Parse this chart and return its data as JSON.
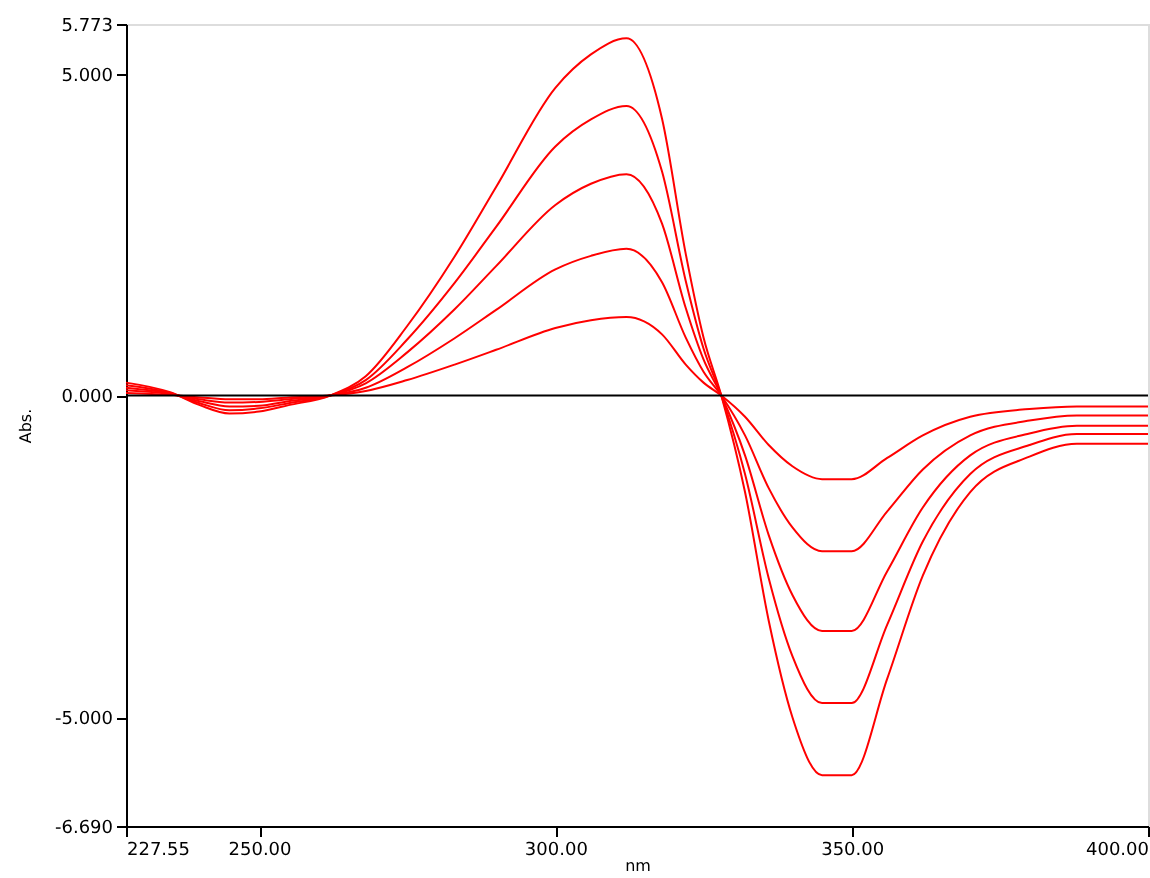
{
  "chart_data": {
    "type": "line",
    "xlabel": "nm",
    "ylabel": "Abs.",
    "x": [
      227.55,
      235,
      240,
      245,
      250,
      255,
      262,
      268,
      275,
      283,
      290,
      300,
      306,
      312,
      318,
      322,
      325,
      328,
      332,
      336,
      340,
      345,
      350,
      356,
      362,
      370,
      380,
      388,
      400
    ],
    "series": [
      {
        "color": "#ff0000",
        "values": [
          0.2,
          0.05,
          -0.15,
          -0.28,
          -0.25,
          -0.15,
          0,
          0.3,
          1.08,
          2.16,
          3.24,
          4.78,
          5.3,
          5.55,
          4.3,
          2.2,
          0.9,
          0,
          -1.5,
          -3.5,
          -5.0,
          -5.9,
          -5.9,
          -4.4,
          -2.8,
          -1.5,
          -0.95,
          -0.75,
          -0.75
        ]
      },
      {
        "color": "#ff0000",
        "values": [
          0.16,
          0.04,
          -0.12,
          -0.23,
          -0.2,
          -0.12,
          0,
          0.24,
          0.87,
          1.75,
          2.62,
          3.87,
          4.29,
          4.5,
          3.48,
          1.78,
          0.73,
          0,
          -1.22,
          -2.84,
          -4.05,
          -4.78,
          -4.78,
          -3.56,
          -2.27,
          -1.22,
          -0.77,
          -0.6,
          -0.6
        ]
      },
      {
        "color": "#ff0000",
        "values": [
          0.12,
          0.03,
          -0.09,
          -0.17,
          -0.16,
          -0.09,
          0,
          0.19,
          0.67,
          1.34,
          2.01,
          2.96,
          3.29,
          3.44,
          2.67,
          1.36,
          0.56,
          0,
          -0.93,
          -2.17,
          -3.1,
          -3.66,
          -3.66,
          -2.73,
          -1.74,
          -0.93,
          -0.59,
          -0.47,
          -0.47
        ]
      },
      {
        "color": "#ff0000",
        "values": [
          0.08,
          0.02,
          -0.06,
          -0.11,
          -0.1,
          -0.06,
          0,
          0.12,
          0.44,
          0.89,
          1.33,
          1.96,
          2.17,
          2.28,
          1.76,
          0.9,
          0.37,
          0,
          -0.62,
          -1.44,
          -2.05,
          -2.42,
          -2.42,
          -1.8,
          -1.15,
          -0.62,
          -0.39,
          -0.31,
          -0.31
        ]
      },
      {
        "color": "#ff0000",
        "values": [
          0.04,
          0.01,
          -0.03,
          -0.06,
          -0.06,
          -0.03,
          0,
          0.07,
          0.24,
          0.48,
          0.71,
          1.05,
          1.17,
          1.22,
          0.95,
          0.48,
          0.2,
          0,
          -0.33,
          -0.77,
          -1.1,
          -1.3,
          -1.3,
          -0.97,
          -0.62,
          -0.33,
          -0.21,
          -0.17,
          -0.17
        ]
      }
    ],
    "xlim": [
      227.55,
      400
    ],
    "xticks": [
      {
        "value": 227.55,
        "label": "227.55"
      },
      {
        "value": 250,
        "label": "250.00"
      },
      {
        "value": 300,
        "label": "300.00"
      },
      {
        "value": 350,
        "label": "350.00"
      },
      {
        "value": 400,
        "label": "400.00"
      }
    ],
    "ylim": [
      -6.69,
      5.773
    ],
    "yticks": [
      {
        "value": -6.69,
        "label": "-6.690"
      },
      {
        "value": -5,
        "label": "-5.000"
      },
      {
        "value": 0,
        "label": "0.000"
      },
      {
        "value": 5,
        "label": "5.000"
      },
      {
        "value": 5.773,
        "label": "5.773"
      }
    ],
    "ref_lines": [
      {
        "axis": "y",
        "value": 0,
        "color": "#000000"
      }
    ],
    "grid": false,
    "legend": false,
    "marker": "none",
    "line_style": "solid"
  }
}
